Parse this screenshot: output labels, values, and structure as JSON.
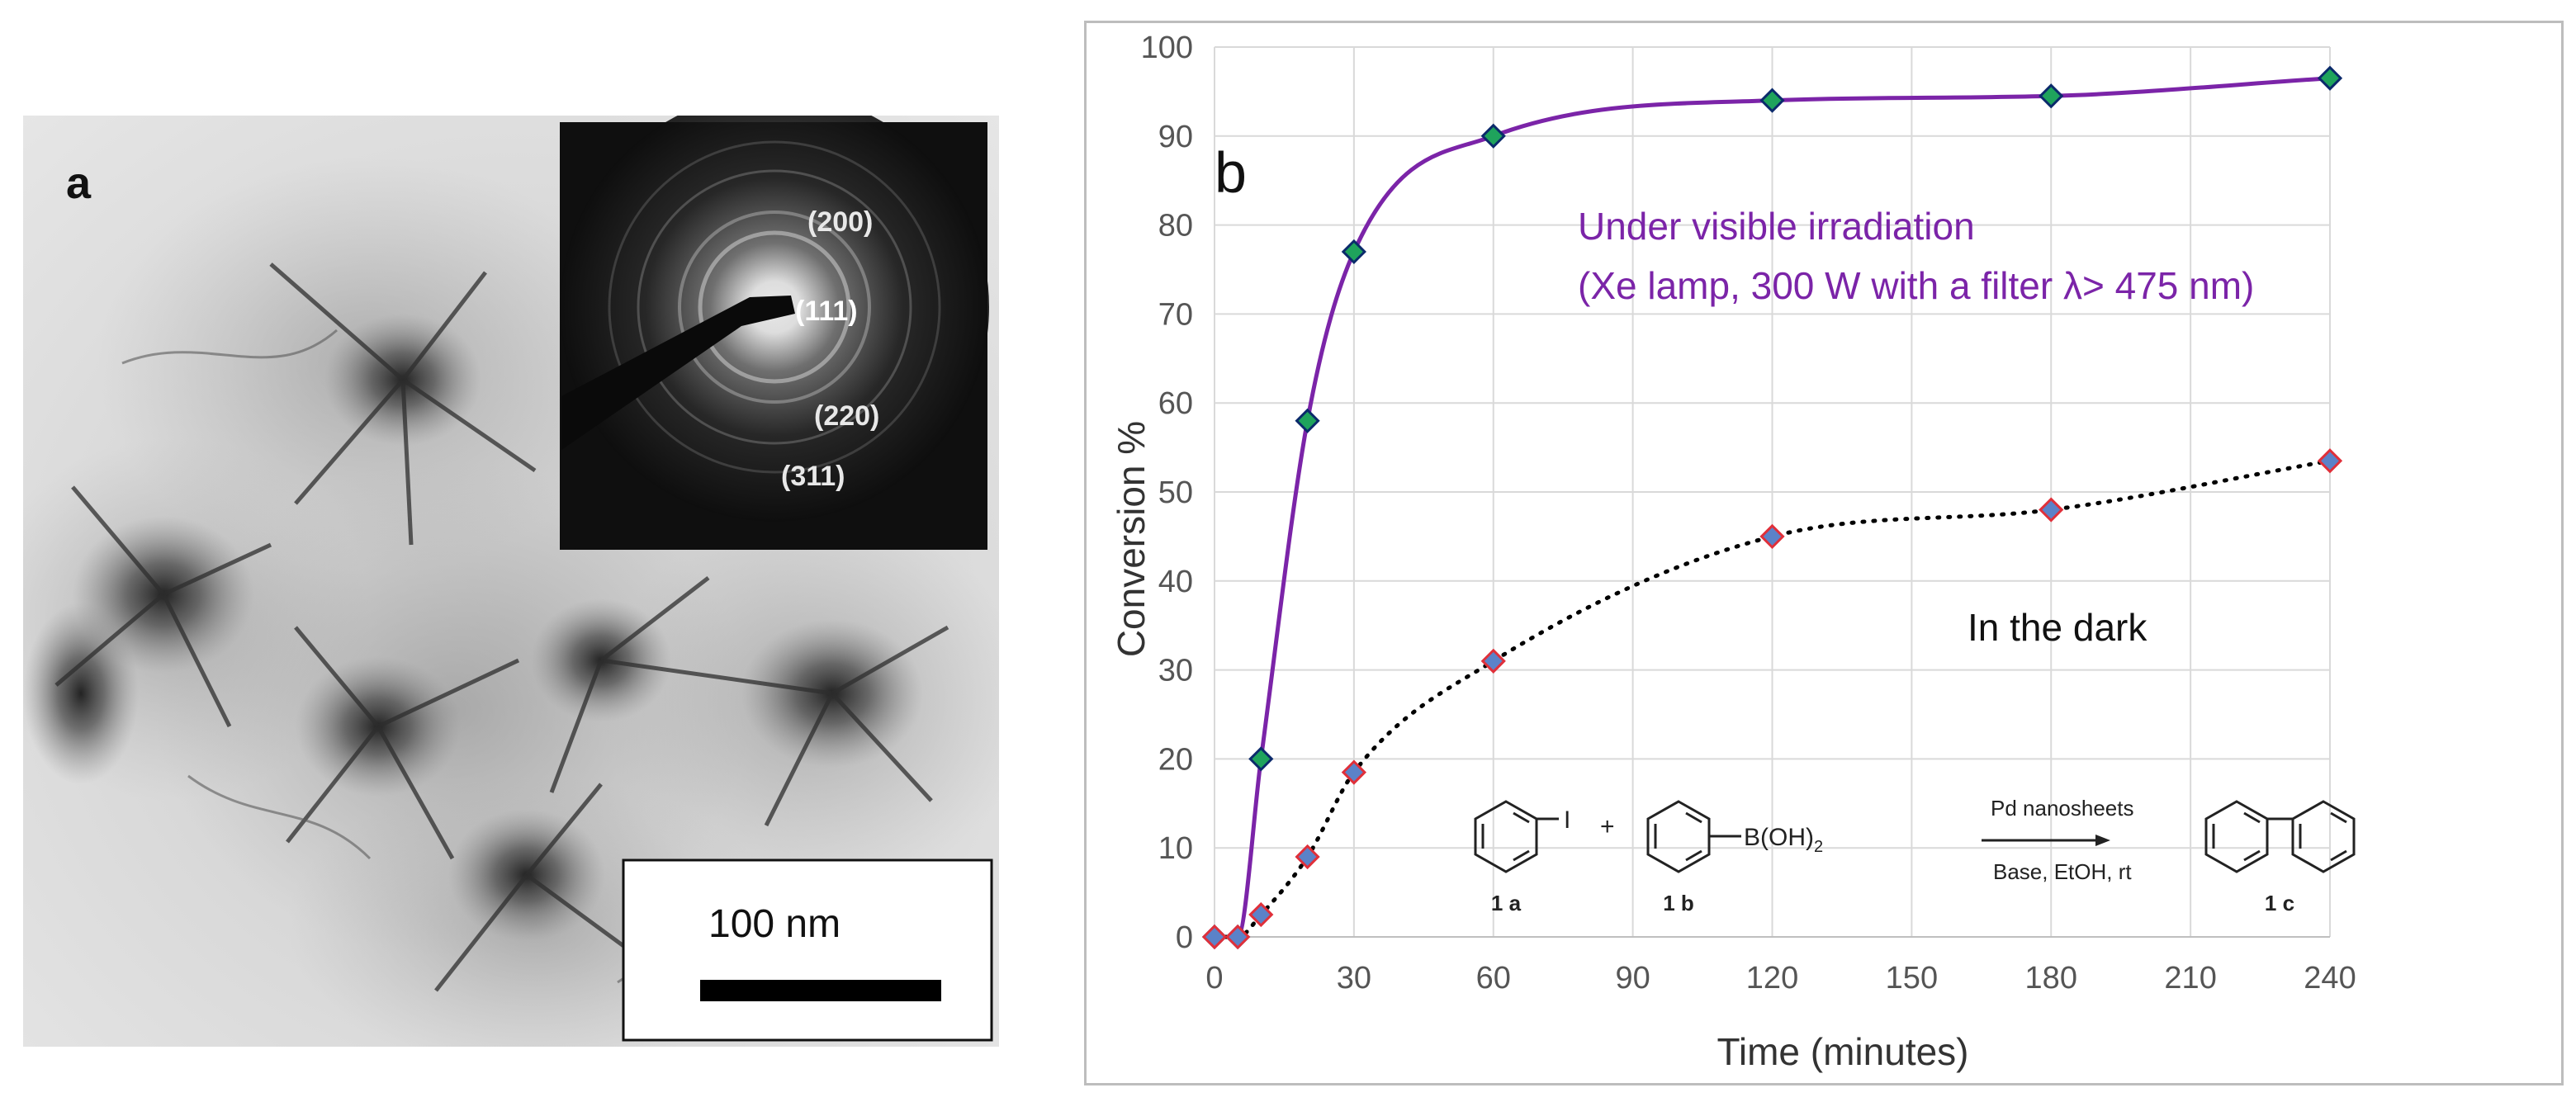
{
  "panel_a": {
    "label": "a",
    "diffraction_rings": [
      "(200)",
      "(111)",
      "(220)",
      "(311)"
    ],
    "scale_bar_label": "100 nm"
  },
  "chart_data": {
    "type": "line",
    "panel_label": "b",
    "title": "",
    "xlabel": "Time (minutes)",
    "ylabel": "Conversion %",
    "xlim": [
      0,
      240
    ],
    "ylim": [
      0,
      100
    ],
    "xticks": [
      0,
      30,
      60,
      90,
      120,
      150,
      180,
      210,
      240
    ],
    "yticks": [
      0,
      10,
      20,
      30,
      40,
      50,
      60,
      70,
      80,
      90,
      100
    ],
    "grid": true,
    "series": [
      {
        "name": "Under visible irradiation",
        "x": [
          0,
          5,
          10,
          20,
          30,
          60,
          120,
          180,
          240
        ],
        "y": [
          0,
          0,
          20,
          58,
          77,
          90,
          94,
          94.5,
          96.5
        ],
        "line_color": "#7b24a8",
        "line_style": "solid",
        "marker": "diamond",
        "marker_fill": "#1fa35c",
        "marker_edge": "#0b2a6b"
      },
      {
        "name": "In the dark",
        "x": [
          0,
          5,
          10,
          20,
          30,
          60,
          120,
          180,
          240
        ],
        "y": [
          0,
          0,
          2.5,
          9,
          18.5,
          31,
          45,
          48,
          53.5
        ],
        "line_color": "#000000",
        "line_style": "dotted",
        "marker": "diamond",
        "marker_fill": "#5b82c8",
        "marker_edge": "#e0303a"
      }
    ],
    "annotations": {
      "irradiation_line1": "Under visible irradiation",
      "irradiation_line2": "(Xe lamp, 300 W with a filter λ> 475 nm)",
      "dark_label": "In the dark"
    },
    "reaction_scheme": {
      "reactant1_label": "1 a",
      "reactant1_substituent": "I",
      "plus": "+",
      "reactant2_label": "1 b",
      "reactant2_substituent": "B(OH)",
      "reactant2_subscript": "2",
      "catalyst": "Pd nanosheets",
      "conditions": "Base, EtOH, rt",
      "product_label": "1 c"
    }
  }
}
